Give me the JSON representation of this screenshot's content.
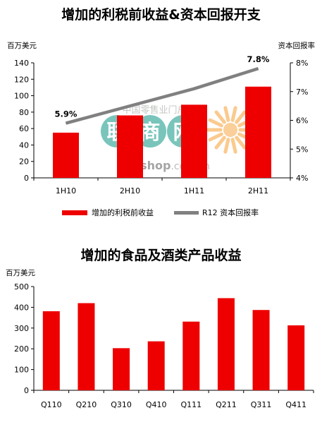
{
  "watermark": {
    "line1": "中国零售业门户网站",
    "brand_cn": [
      "联",
      "商",
      "网"
    ],
    "domain_bold": "linkshop",
    "domain_rest": ".com.cn"
  },
  "chart_data": [
    {
      "type": "bar+line",
      "title": "增加的利税前收益&资本回报开支",
      "ylabel": "百万美元",
      "ylabel_right": "资本回报率",
      "categories": [
        "1H10",
        "2H10",
        "1H11",
        "2H11"
      ],
      "ylim": [
        0,
        140
      ],
      "y_ticks": [
        0,
        20,
        40,
        60,
        80,
        100,
        120,
        140
      ],
      "ylim_right": [
        4,
        8
      ],
      "y2_ticks": [
        "4%",
        "5%",
        "6%",
        "7%",
        "8%"
      ],
      "series": [
        {
          "name": "增加的利税前收益",
          "kind": "bar",
          "color": "#ee0000",
          "values": [
            55,
            76,
            89,
            111
          ]
        },
        {
          "name": "R12 资本回报率",
          "kind": "line",
          "axis": "right",
          "color": "#808080",
          "values": [
            5.9,
            6.5,
            7.1,
            7.8
          ],
          "labels": [
            "5.9%",
            "",
            "",
            "7.8%"
          ]
        }
      ]
    },
    {
      "type": "bar",
      "title": "增加的食品及酒类产品收益",
      "ylabel": "百万美元",
      "categories": [
        "Q110",
        "Q210",
        "Q310",
        "Q410",
        "Q111",
        "Q211",
        "Q311",
        "Q411"
      ],
      "ylim": [
        0,
        500
      ],
      "y_ticks": [
        0,
        100,
        200,
        300,
        400,
        500
      ],
      "series": [
        {
          "name": "",
          "color": "#ee0000",
          "values": [
            381,
            420,
            203,
            236,
            331,
            444,
            387,
            313
          ]
        }
      ]
    }
  ]
}
